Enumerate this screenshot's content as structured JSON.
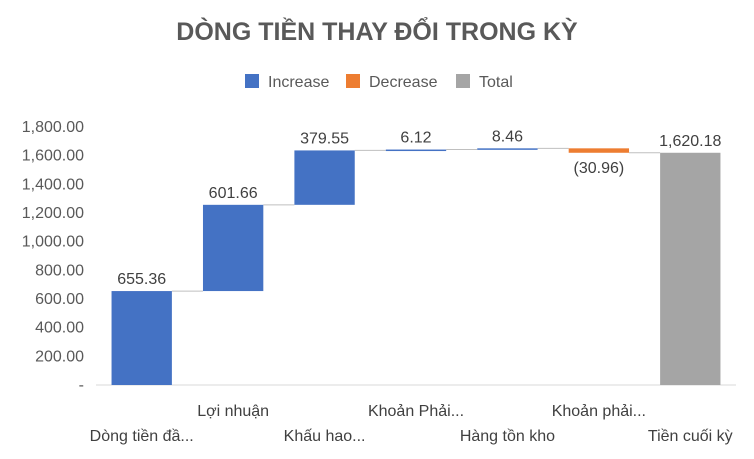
{
  "chart_data": {
    "type": "bar",
    "subtype": "waterfall",
    "title": "DÒNG TIỀN THAY ĐỔI TRONG KỲ",
    "xlabel": "",
    "ylabel": "",
    "ylim": [
      0,
      1800
    ],
    "y_ticks": [
      "-",
      "200.00",
      "400.00",
      "600.00",
      "800.00",
      "1,000.00",
      "1,200.00",
      "1,400.00",
      "1,600.00",
      "1,800.00"
    ],
    "grid": false,
    "legend": {
      "position": "top",
      "entries": [
        {
          "name": "Increase",
          "color": "#4472C4"
        },
        {
          "name": "Decrease",
          "color": "#ED7D31"
        },
        {
          "name": "Total",
          "color": "#A5A5A5"
        }
      ]
    },
    "categories": [
      "Dòng tiền đầ...",
      "Lợi nhuận",
      "Khấu hao...",
      "Khoản Phải...",
      "Hàng tồn kho",
      "Khoản phải...",
      "Tiền cuối kỳ"
    ],
    "values": [
      655.36,
      601.66,
      379.55,
      6.12,
      8.46,
      -30.96,
      1620.18
    ],
    "kinds": [
      "increase",
      "increase",
      "increase",
      "increase",
      "increase",
      "decrease",
      "total"
    ],
    "data_labels": [
      "655.36",
      "601.66",
      "379.55",
      "6.12",
      "8.46",
      "(30.96)",
      "1,620.18"
    ]
  }
}
